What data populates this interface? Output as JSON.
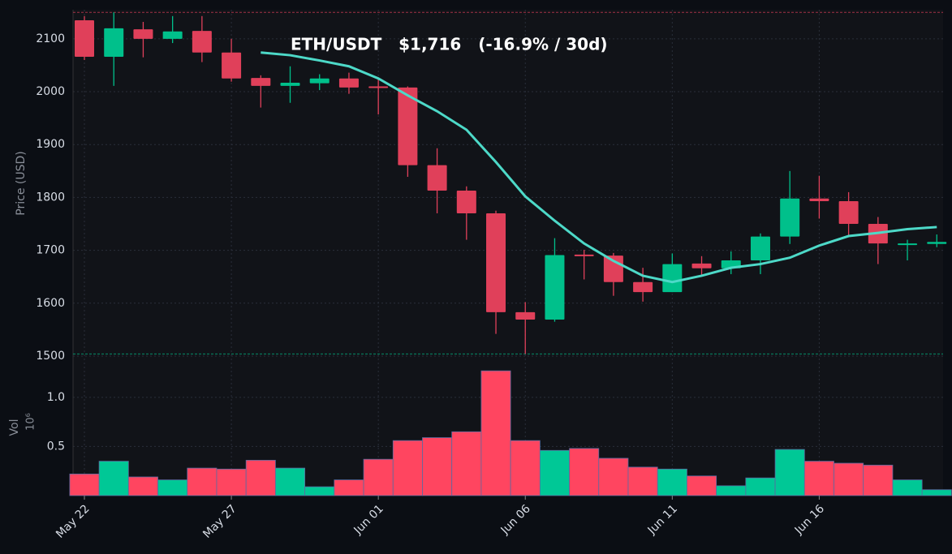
{
  "chart_data": {
    "type": "candlestick",
    "title": "ETH/USDT   $1,716   (-16.9% / 30d)",
    "ylabel": "Price (USD)",
    "categories": [
      "May 22",
      null,
      null,
      null,
      null,
      "May 27",
      null,
      null,
      null,
      null,
      "Jun 01",
      null,
      null,
      null,
      null,
      "Jun 06",
      null,
      null,
      null,
      null,
      "Jun 11",
      null,
      null,
      null,
      null,
      "Jun 16",
      null,
      null,
      null,
      null
    ],
    "open": [
      2135,
      2066,
      2118,
      2100,
      2115,
      2074,
      2026,
      2011,
      2016,
      2025,
      2010,
      2008,
      1861,
      1813,
      1770,
      1583,
      1569,
      1692,
      1690,
      1640,
      1621,
      1675,
      1666,
      1681,
      1726,
      1798,
      1793,
      1750,
      1712,
      1712
    ],
    "high": [
      2143,
      2150,
      2132,
      2143,
      2143,
      2100,
      2031,
      2048,
      2033,
      2036,
      2026,
      2010,
      1893,
      1821,
      1775,
      1602,
      1723,
      1701,
      1695,
      1667,
      1694,
      1689,
      1698,
      1732,
      1850,
      1841,
      1810,
      1763,
      1720,
      1730
    ],
    "low": [
      2060,
      2011,
      2065,
      2092,
      2056,
      2019,
      1970,
      1979,
      2003,
      1996,
      1957,
      1839,
      1770,
      1720,
      1542,
      1504,
      1565,
      1645,
      1614,
      1603,
      1621,
      1652,
      1655,
      1655,
      1712,
      1760,
      1729,
      1674,
      1681,
      1706
    ],
    "close": [
      2066,
      2120,
      2100,
      2114,
      2074,
      2025,
      2011,
      2017,
      2025,
      2008,
      2008,
      1861,
      1813,
      1770,
      1583,
      1569,
      1691,
      1690,
      1640,
      1621,
      1674,
      1666,
      1681,
      1726,
      1798,
      1793,
      1750,
      1713,
      1713,
      1716
    ],
    "up_color": "#00c08b",
    "down_color": "#e0405a",
    "ma": {
      "color": "#4dd9c8",
      "values": [
        null,
        null,
        null,
        null,
        null,
        null,
        2074,
        2069,
        2059,
        2048,
        2025,
        1993,
        1963,
        1928,
        1867,
        1802,
        1756,
        1713,
        1680,
        1652,
        1640,
        1652,
        1667,
        1674,
        1686,
        1709,
        1727,
        1733,
        1740,
        1744
      ]
    },
    "ylim": [
      1500,
      2155
    ],
    "yticks": [
      1500,
      1600,
      1700,
      1800,
      1900,
      2000,
      2100
    ],
    "grid": true,
    "volume": {
      "label": "Vol",
      "multiplier": "10⁶",
      "up_color": "#00c896",
      "down_color": "#ff4560",
      "values": [
        0.22,
        0.35,
        0.19,
        0.16,
        0.28,
        0.27,
        0.36,
        0.28,
        0.09,
        0.16,
        0.37,
        0.56,
        0.59,
        0.65,
        1.27,
        0.56,
        0.46,
        0.48,
        0.38,
        0.29,
        0.27,
        0.2,
        0.1,
        0.18,
        0.47,
        0.35,
        0.33,
        0.31,
        0.16,
        0.06
      ],
      "ylim": [
        0,
        1.42
      ],
      "yticks": [
        0.5,
        {
          "value": 1,
          "label": "1.0"
        }
      ]
    }
  }
}
